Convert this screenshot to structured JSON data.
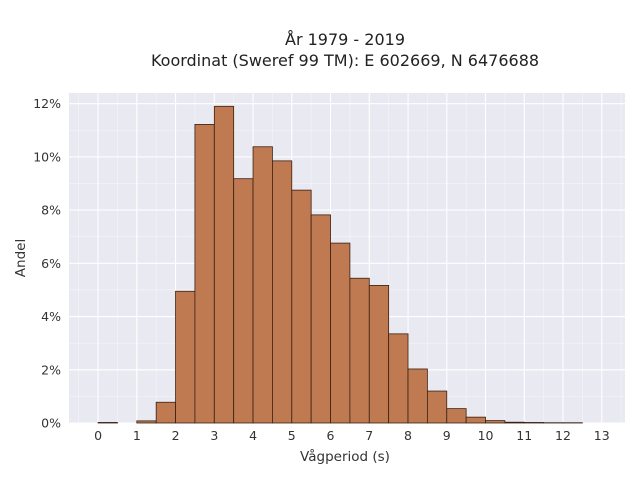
{
  "colors": {
    "plot_background": "#e9e9f2",
    "bar_fill": "#c07a52",
    "bar_stroke": "#3a2010"
  },
  "chart_data": {
    "type": "bar",
    "title_lines": [
      "År 1979 - 2019",
      "Koordinat (Sweref 99 TM): E 602669, N 6476688"
    ],
    "xlabel": "Vågperiod (s)",
    "ylabel": "Andel",
    "x_ticks": [
      0,
      1,
      2,
      3,
      4,
      5,
      6,
      7,
      8,
      9,
      10,
      11,
      12,
      13
    ],
    "x_tick_labels": [
      "0",
      "1",
      "2",
      "3",
      "4",
      "5",
      "6",
      "7",
      "8",
      "9",
      "10",
      "11",
      "12",
      "13"
    ],
    "y_ticks": [
      0,
      2,
      4,
      6,
      8,
      10,
      12
    ],
    "y_tick_labels": [
      "0%",
      "2%",
      "4%",
      "6%",
      "8%",
      "10%",
      "12%"
    ],
    "xlim": [
      -0.75,
      13.6
    ],
    "ylim": [
      0,
      12.4
    ],
    "bin_width": 0.5,
    "bins": [
      {
        "start": 0.0,
        "value": 0.02
      },
      {
        "start": 0.5,
        "value": 0.0
      },
      {
        "start": 1.0,
        "value": 0.08
      },
      {
        "start": 1.5,
        "value": 0.78
      },
      {
        "start": 2.0,
        "value": 4.95
      },
      {
        "start": 2.5,
        "value": 11.22
      },
      {
        "start": 3.0,
        "value": 11.9
      },
      {
        "start": 3.5,
        "value": 9.18
      },
      {
        "start": 4.0,
        "value": 10.38
      },
      {
        "start": 4.5,
        "value": 9.85
      },
      {
        "start": 5.0,
        "value": 8.75
      },
      {
        "start": 5.5,
        "value": 7.82
      },
      {
        "start": 6.0,
        "value": 6.76
      },
      {
        "start": 6.5,
        "value": 5.44
      },
      {
        "start": 7.0,
        "value": 5.17
      },
      {
        "start": 7.5,
        "value": 3.35
      },
      {
        "start": 8.0,
        "value": 2.03
      },
      {
        "start": 8.5,
        "value": 1.2
      },
      {
        "start": 9.0,
        "value": 0.54
      },
      {
        "start": 9.5,
        "value": 0.22
      },
      {
        "start": 10.0,
        "value": 0.09
      },
      {
        "start": 10.5,
        "value": 0.03
      },
      {
        "start": 11.0,
        "value": 0.02
      },
      {
        "start": 11.5,
        "value": 0.01
      },
      {
        "start": 12.0,
        "value": 0.01
      },
      {
        "start": 12.5,
        "value": 0.0
      }
    ],
    "grid": true,
    "legend": "none"
  }
}
